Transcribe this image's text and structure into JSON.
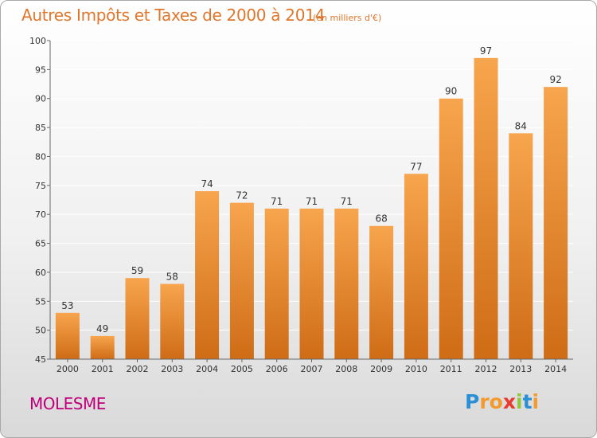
{
  "header": {
    "title": "Autres Impôts et Taxes de 2000 à 2014",
    "subtitle": "(en milliers d'€)"
  },
  "footer": {
    "commune": "MOLESME",
    "logo_letters": [
      "P",
      "r",
      "o",
      "x",
      "i",
      "t",
      "i"
    ],
    "logo_colors": [
      "#2b8fd6",
      "#f29a2e",
      "#f29a2e",
      "#e83a2e",
      "#8dc63f",
      "#2b8fd6",
      "#f29a2e"
    ]
  },
  "colors": {
    "bar_light": "#f7a54e",
    "bar_dark": "#cf6c16",
    "axis": "#666666",
    "grid": "#ffffff"
  },
  "chart_data": {
    "type": "bar",
    "categories": [
      "2000",
      "2001",
      "2002",
      "2003",
      "2004",
      "2005",
      "2006",
      "2007",
      "2008",
      "2009",
      "2010",
      "2011",
      "2012",
      "2013",
      "2014"
    ],
    "values": [
      53,
      49,
      59,
      58,
      74,
      72,
      71,
      71,
      71,
      68,
      77,
      90,
      97,
      84,
      92
    ],
    "title": "Autres Impôts et Taxes de 2000 à 2014",
    "subtitle": "(en milliers d'€)",
    "ylim": [
      45,
      100
    ],
    "yticks": [
      45,
      50,
      55,
      60,
      65,
      70,
      75,
      80,
      85,
      90,
      95,
      100
    ],
    "grid": true,
    "data_labels": true
  }
}
